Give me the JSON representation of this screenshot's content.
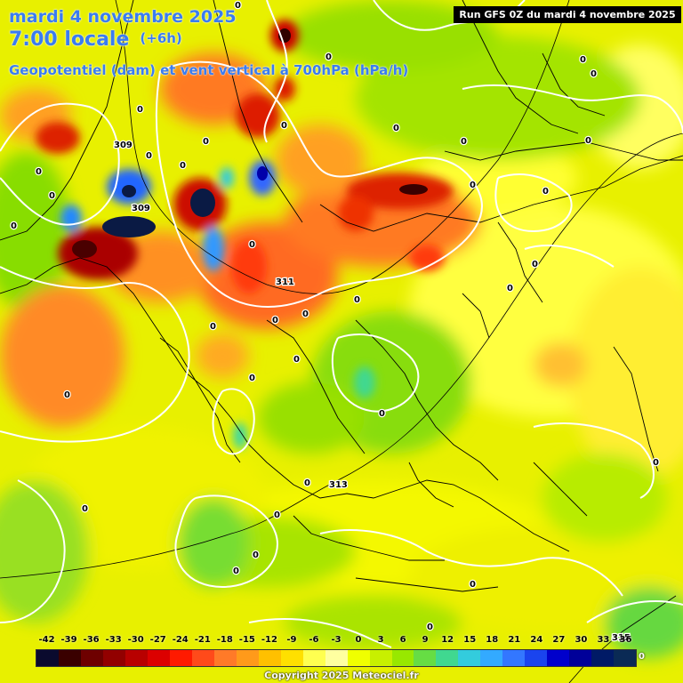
{
  "header": {
    "date_line": "mardi 4 novembre 2025",
    "time_line": "7:00 locale",
    "offset": "(+6h)",
    "field_line": "Geopotentiel (dam) et vent vertical à 700hPa (hPa/h)"
  },
  "run_info": "Run GFS 0Z du mardi 4 novembre 2025",
  "copyright": "Copyright 2025 Meteociel.fr",
  "legend": {
    "ticks": [
      "-42",
      "-39",
      "-36",
      "-33",
      "-30",
      "-27",
      "-24",
      "-21",
      "-18",
      "-15",
      "-12",
      "-9",
      "-6",
      "-3",
      "0",
      "3",
      "6",
      "9",
      "12",
      "15",
      "18",
      "21",
      "24",
      "27",
      "30",
      "33",
      "36"
    ],
    "end_label": "0",
    "colors": [
      "#0a0a2e",
      "#3a0000",
      "#6e0000",
      "#920000",
      "#b80000",
      "#dc0000",
      "#ff1a00",
      "#ff4a1a",
      "#ff7a28",
      "#ff9a1a",
      "#ffc000",
      "#ffe000",
      "#ffff50",
      "#ffffa0",
      "#f0ff00",
      "#c8f000",
      "#98e800",
      "#66dd44",
      "#40d890",
      "#33ccdd",
      "#33aaff",
      "#3377ff",
      "#1a44ee",
      "#0000cc",
      "#000099",
      "#001a66",
      "#0a2a55"
    ]
  },
  "map_labels": {
    "contours": [
      {
        "id": "c309a",
        "text": "309"
      },
      {
        "id": "c309b",
        "text": "309"
      },
      {
        "id": "c311",
        "text": "311"
      },
      {
        "id": "c313",
        "text": "313"
      },
      {
        "id": "c315",
        "text": "315"
      }
    ],
    "zero": "0"
  }
}
